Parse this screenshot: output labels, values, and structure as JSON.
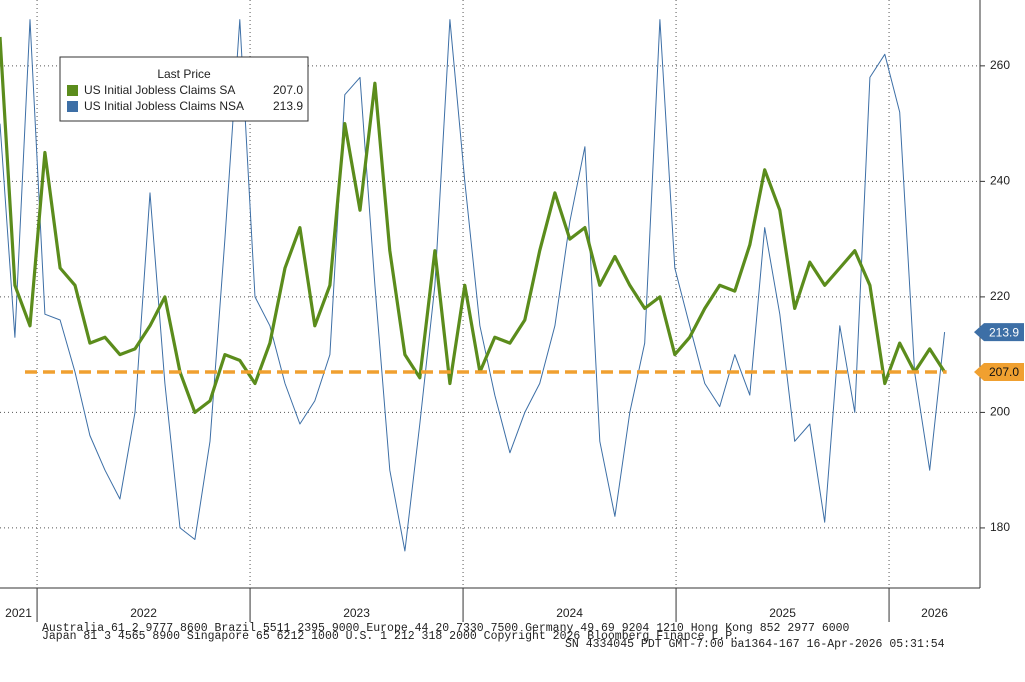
{
  "chart_data": {
    "type": "line",
    "legend_title": "Last Price",
    "x": [
      2021.826,
      2021.896,
      2021.967,
      2022.037,
      2022.108,
      2022.178,
      2022.248,
      2022.319,
      2022.389,
      2022.46,
      2022.53,
      2022.6,
      2022.671,
      2022.741,
      2022.812,
      2022.882,
      2022.952,
      2023.023,
      2023.093,
      2023.164,
      2023.234,
      2023.304,
      2023.375,
      2023.445,
      2023.516,
      2023.586,
      2023.656,
      2023.727,
      2023.797,
      2023.868,
      2023.938,
      2024.008,
      2024.079,
      2024.149,
      2024.22,
      2024.29,
      2024.36,
      2024.431,
      2024.501,
      2024.572,
      2024.642,
      2024.713,
      2024.783,
      2024.853,
      2024.924,
      2024.994,
      2025.064,
      2025.135,
      2025.205,
      2025.276,
      2025.346,
      2025.416,
      2025.487,
      2025.557,
      2025.628,
      2025.698,
      2025.769,
      2025.839,
      2025.91,
      2025.98,
      2026.05,
      2026.12,
      2026.191,
      2026.261
    ],
    "series": [
      {
        "name": "US Initial Jobless Claims SA",
        "color": "#5b8c1c",
        "last_value_label": "207.0",
        "values": [
          265,
          222,
          215,
          245,
          225,
          222,
          212,
          213,
          210,
          211,
          215,
          220,
          207,
          200,
          202,
          210,
          209,
          205,
          212,
          225,
          232,
          215,
          222,
          250,
          235,
          257,
          228,
          210,
          206,
          228,
          205,
          222,
          207,
          213,
          212,
          216,
          228,
          238,
          230,
          232,
          222,
          227,
          222,
          218,
          220,
          210,
          213,
          218,
          222,
          221,
          229,
          242,
          235,
          218,
          226,
          222,
          225,
          228,
          222,
          205,
          212,
          207,
          211,
          207.0
        ]
      },
      {
        "name": "US Initial Jobless Claims NSA",
        "color": "#3d6fa6",
        "last_value_label": "213.9",
        "values": [
          250,
          213,
          268,
          217,
          216,
          207,
          196,
          190,
          185,
          200,
          238,
          205,
          180,
          178,
          195,
          230,
          268,
          220,
          215,
          205,
          198,
          202,
          210,
          255,
          258,
          222,
          190,
          176,
          198,
          222,
          268,
          240,
          215,
          203,
          193,
          200,
          205,
          215,
          233,
          246,
          195,
          182,
          200,
          212,
          268,
          225,
          215,
          205,
          201,
          210,
          203,
          232,
          217,
          195,
          198,
          181,
          215,
          200,
          258,
          262,
          252,
          207,
          190,
          213.9
        ]
      }
    ],
    "xlim": [
      2021.826,
      2026.427
    ],
    "xticks": [
      2022,
      2023,
      2024,
      2025,
      2026
    ],
    "year_labels": [
      "2021",
      "2022",
      "2023",
      "2024",
      "2025",
      "2026"
    ],
    "ylim": [
      169.6,
      271.4
    ],
    "yticks": [
      180,
      200,
      220,
      240,
      260
    ],
    "reference_color": "#f0a030",
    "grid": true,
    "footer": [
      "Australia 61 2 9777 8600 Brazil 5511 2395 9000 Europe 44 20 7330 7500 Germany 49 69 9204 1210 Hong Kong 852 2977 6000",
      "Japan 81 3 4565 8900       Singapore 65 6212 1000       U.S. 1 212 318 2000          Copyright 2026 Bloomberg Finance L.P.",
      "SN 4334045 PDT  GMT-7:00 ba1364-167 16-Apr-2026 05:31:54"
    ]
  }
}
